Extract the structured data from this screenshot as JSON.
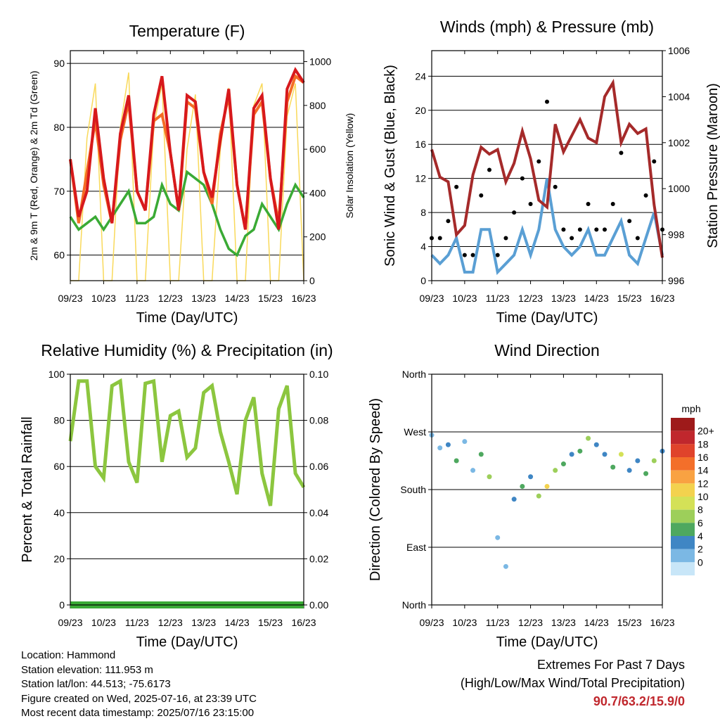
{
  "x_ticks": [
    "09/23",
    "10/23",
    "11/23",
    "12/23",
    "13/23",
    "14/23",
    "15/23",
    "16/23"
  ],
  "x_axis_label": "Time (Day/UTC)",
  "colors": {
    "temp_2m": "#d7191c",
    "temp_9m": "#f46d25",
    "dewpoint": "#3aaa35",
    "solar": "#f9d95a",
    "pressure": "#a52a2a",
    "wind": "#5a9fd4",
    "gust": "#000000",
    "rh": "#8cc63f",
    "precip": "#3aaa35",
    "extremes": "#c0272d"
  },
  "chart_data": [
    {
      "type": "line",
      "title": "Temperature (F)",
      "xlabel": "Time (Day/UTC)",
      "ylabel": "2m & 9m T (Red, Orange) & 2m Td (Green)",
      "y2label": "Solar Insolation (Yellow)",
      "ylim": [
        56,
        92
      ],
      "y2lim": [
        0,
        1050
      ],
      "yticks": [
        "60",
        "70",
        "80",
        "90"
      ],
      "y2ticks": [
        "0",
        "200",
        "400",
        "600",
        "800",
        "1000"
      ],
      "x": [
        9.0,
        9.25,
        9.5,
        9.75,
        10.0,
        10.25,
        10.5,
        10.75,
        11.0,
        11.25,
        11.5,
        11.75,
        12.0,
        12.25,
        12.5,
        12.75,
        13.0,
        13.25,
        13.5,
        13.75,
        14.0,
        14.25,
        14.5,
        14.75,
        15.0,
        15.25,
        15.5,
        15.75,
        16.0
      ],
      "series": [
        {
          "name": "2m T",
          "values": [
            75,
            66,
            70,
            83,
            72,
            65,
            79,
            85,
            70,
            67,
            82,
            88,
            76,
            67,
            85,
            84,
            73,
            69,
            78,
            86,
            71,
            64,
            83,
            85,
            72,
            64,
            86,
            89,
            87
          ]
        },
        {
          "name": "9m T",
          "values": [
            75,
            65,
            73,
            81,
            71,
            65,
            78,
            84,
            70,
            67,
            81,
            82,
            76,
            67,
            84,
            83,
            73,
            68,
            79,
            85,
            71,
            64,
            82,
            84,
            72,
            65,
            84,
            88,
            87
          ]
        },
        {
          "name": "2m Td",
          "values": [
            66,
            64,
            65,
            66,
            64,
            66,
            68,
            70,
            65,
            65,
            66,
            71,
            68,
            67,
            73,
            72,
            71,
            68,
            64,
            61,
            60,
            63,
            64,
            68,
            66,
            64,
            68,
            71,
            69
          ]
        },
        {
          "name": "Solar",
          "values": [
            0,
            0,
            650,
            900,
            0,
            0,
            700,
            950,
            0,
            0,
            700,
            900,
            0,
            0,
            600,
            850,
            0,
            0,
            600,
            880,
            0,
            0,
            800,
            900,
            0,
            0,
            750,
            900,
            0
          ]
        }
      ]
    },
    {
      "type": "line",
      "title": "Winds (mph) & Pressure (mb)",
      "xlabel": "Time (Day/UTC)",
      "ylabel": "Sonic Wind & Gust (Blue, Black)",
      "y2label": "Station Pressure (Maroon)",
      "ylim": [
        0,
        27
      ],
      "y2lim": [
        996,
        1006
      ],
      "yticks": [
        "0",
        "4",
        "8",
        "12",
        "16",
        "20",
        "24"
      ],
      "y2ticks": [
        "996",
        "998",
        "1000",
        "1002",
        "1004",
        "1006"
      ],
      "x": [
        9.0,
        9.25,
        9.5,
        9.75,
        10.0,
        10.25,
        10.5,
        10.75,
        11.0,
        11.25,
        11.5,
        11.75,
        12.0,
        12.25,
        12.5,
        12.75,
        13.0,
        13.25,
        13.5,
        13.75,
        14.0,
        14.25,
        14.5,
        14.75,
        15.0,
        15.25,
        15.5,
        15.75,
        16.0
      ],
      "series": [
        {
          "name": "Wind",
          "values": [
            3,
            2,
            3,
            5,
            1,
            1,
            6,
            6,
            1,
            2,
            3,
            6,
            3,
            6,
            12,
            6,
            4,
            3,
            4,
            6,
            3,
            3,
            5,
            7,
            3,
            2,
            5,
            8,
            3
          ]
        },
        {
          "name": "Gust",
          "values": [
            5,
            5,
            7,
            11,
            3,
            3,
            10,
            13,
            3,
            5,
            8,
            12,
            9,
            14,
            21,
            11,
            6,
            5,
            6,
            9,
            6,
            6,
            9,
            15,
            7,
            5,
            10,
            14,
            6
          ]
        },
        {
          "name": "Pressure",
          "values": [
            1001.7,
            1000.5,
            1000.3,
            998.0,
            998.4,
            1000.6,
            1001.8,
            1001.5,
            1001.7,
            1000.3,
            1001.1,
            1002.5,
            1001.3,
            999.5,
            999.2,
            1002.8,
            1001.6,
            1002.3,
            1003.0,
            1002.2,
            1002.0,
            1004.0,
            1004.6,
            1002.0,
            1002.8,
            1002.4,
            1002.6,
            999.3,
            997.0
          ]
        }
      ]
    },
    {
      "type": "line",
      "title": "Relative Humidity (%) & Precipitation (in)",
      "xlabel": "Time (Day/UTC)",
      "ylabel": "Percent & Total Rainfall",
      "ylim": [
        0,
        100
      ],
      "y2lim": [
        0,
        0.1
      ],
      "yticks": [
        "0",
        "20",
        "40",
        "60",
        "80",
        "100"
      ],
      "y2ticks": [
        "0.00",
        "0.02",
        "0.04",
        "0.06",
        "0.08",
        "0.10"
      ],
      "x": [
        9.0,
        9.25,
        9.5,
        9.75,
        10.0,
        10.25,
        10.5,
        10.75,
        11.0,
        11.25,
        11.5,
        11.75,
        12.0,
        12.25,
        12.5,
        12.75,
        13.0,
        13.25,
        13.5,
        13.75,
        14.0,
        14.25,
        14.5,
        14.75,
        15.0,
        15.25,
        15.5,
        15.75,
        16.0
      ],
      "series": [
        {
          "name": "RH",
          "values": [
            71,
            97,
            97,
            60,
            55,
            95,
            97,
            62,
            53,
            96,
            97,
            62,
            82,
            84,
            64,
            68,
            92,
            95,
            75,
            62,
            48,
            80,
            90,
            57,
            43,
            85,
            95,
            57,
            51
          ]
        },
        {
          "name": "Precip",
          "values": [
            0,
            0,
            0,
            0,
            0,
            0,
            0,
            0,
            0,
            0,
            0,
            0,
            0,
            0,
            0,
            0,
            0,
            0,
            0,
            0,
            0,
            0,
            0,
            0,
            0,
            0,
            0,
            0,
            0
          ]
        }
      ]
    },
    {
      "type": "scatter",
      "title": "Wind Direction",
      "xlabel": "Time (Day/UTC)",
      "ylabel": "Direction (Colored By Speed)",
      "ylim": [
        0,
        360
      ],
      "yticks": [
        "North",
        "East",
        "South",
        "West",
        "North"
      ],
      "x": [
        9.0,
        9.25,
        9.5,
        9.75,
        10.0,
        10.25,
        10.5,
        10.75,
        11.0,
        11.25,
        11.5,
        11.75,
        12.0,
        12.25,
        12.5,
        12.75,
        13.0,
        13.25,
        13.5,
        13.75,
        14.0,
        14.25,
        14.5,
        14.75,
        15.0,
        15.25,
        15.5,
        15.75,
        16.0
      ],
      "series": [
        {
          "name": "Direction",
          "values": [
            265,
            245,
            250,
            225,
            255,
            210,
            235,
            200,
            105,
            60,
            165,
            185,
            200,
            170,
            185,
            210,
            220,
            235,
            240,
            260,
            250,
            235,
            215,
            235,
            210,
            225,
            205,
            225,
            240
          ]
        },
        {
          "name": "Speed",
          "values": [
            2,
            2,
            3,
            5,
            2,
            2,
            6,
            7,
            1,
            1,
            3,
            6,
            4,
            7,
            12,
            8,
            5,
            4,
            5,
            7,
            4,
            3,
            6,
            10,
            4,
            3,
            6,
            8,
            4
          ]
        }
      ],
      "colorbar": {
        "title": "mph",
        "labels": [
          "20+",
          "18",
          "16",
          "14",
          "12",
          "10",
          "8",
          "6",
          "4",
          "2",
          "0"
        ],
        "colors": [
          "#9e1a1a",
          "#c0272d",
          "#e0432b",
          "#f36f2a",
          "#f9a242",
          "#f3d24e",
          "#d4e157",
          "#9dcf5a",
          "#4ea85f",
          "#3f86c4",
          "#7bb8e4",
          "#c8e6f8"
        ]
      }
    }
  ],
  "station_info": [
    "Location: Hammond",
    "Station elevation: 111.953 m",
    "Station lat/lon: 44.513; -75.6173",
    "Figure created on Wed, 2025-07-16, at 23:39 UTC",
    "Most recent data timestamp: 2025/07/16 23:15:00"
  ],
  "extremes": {
    "title": "Extremes For Past 7 Days",
    "subtitle": "(High/Low/Max Wind/Total Precipitation)",
    "value": "90.7/63.2/15.9/0"
  }
}
